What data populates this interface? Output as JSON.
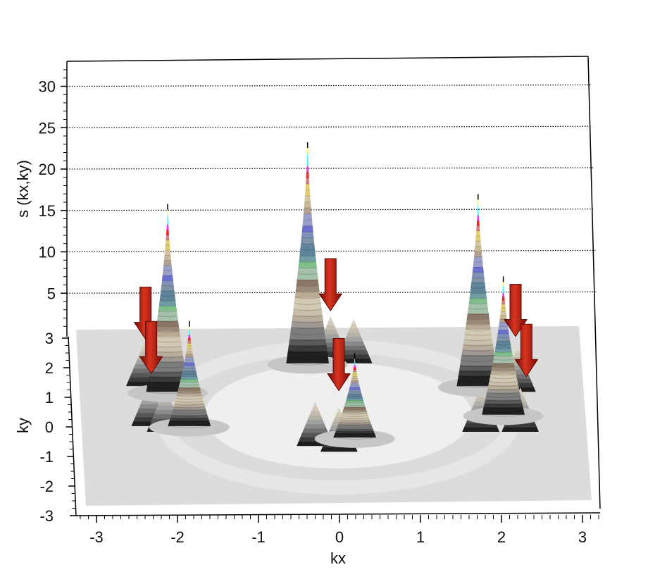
{
  "chart_data": {
    "type": "surface",
    "z_axis": {
      "label": "s (kx,ky)",
      "ticks": [
        5,
        10,
        15,
        20,
        25,
        30
      ],
      "range": [
        0,
        32
      ]
    },
    "x_axis": {
      "label": "kx",
      "ticks": [
        -3,
        -2,
        -1,
        0,
        1,
        2,
        3
      ],
      "range": [
        -3.2,
        3.2
      ]
    },
    "y_axis": {
      "label": "ky",
      "ticks": [
        3,
        2,
        1,
        0,
        -1,
        -2,
        -3
      ],
      "range": [
        -3,
        3
      ]
    },
    "grid": "horizontal dotted lines on back wall",
    "peaks": [
      {
        "kx": -2.2,
        "ky": 1.0,
        "height": 22
      },
      {
        "kx": -1.9,
        "ky": -0.2,
        "height": 12
      },
      {
        "kx": -0.4,
        "ky": 2.0,
        "height": 26
      },
      {
        "kx": 0.2,
        "ky": -0.6,
        "height": 9.5
      },
      {
        "kx": 1.8,
        "ky": 1.2,
        "height": 22.5
      },
      {
        "kx": 2.1,
        "ky": 0.2,
        "height": 16
      }
    ],
    "secondary_peaks": [
      {
        "kx": -2.5,
        "ky": 1.2
      },
      {
        "kx": -2.4,
        "ky": -0.2
      },
      {
        "kx": -2.2,
        "ky": -0.4
      },
      {
        "kx": -0.1,
        "ky": 2.1
      },
      {
        "kx": 0.2,
        "ky": 2.0
      },
      {
        "kx": -0.3,
        "ky": -0.9
      },
      {
        "kx": 0.0,
        "ky": -1.1
      },
      {
        "kx": 2.3,
        "ky": 1.0
      },
      {
        "kx": 1.8,
        "ky": -0.4
      },
      {
        "kx": 2.3,
        "ky": -0.4
      }
    ],
    "arrows": [
      {
        "kx": -2.5,
        "ky": 1.7
      },
      {
        "kx": -2.4,
        "ky": 0.5
      },
      {
        "kx": -0.1,
        "ky": 2.7
      },
      {
        "kx": 0.0,
        "ky": -0.1
      },
      {
        "kx": 2.3,
        "ky": 1.8
      },
      {
        "kx": 2.4,
        "ky": 0.4
      }
    ],
    "colors": {
      "floor": "#dcdcdc",
      "floor_center": "#efefef",
      "arrow": "#b01a10"
    }
  }
}
